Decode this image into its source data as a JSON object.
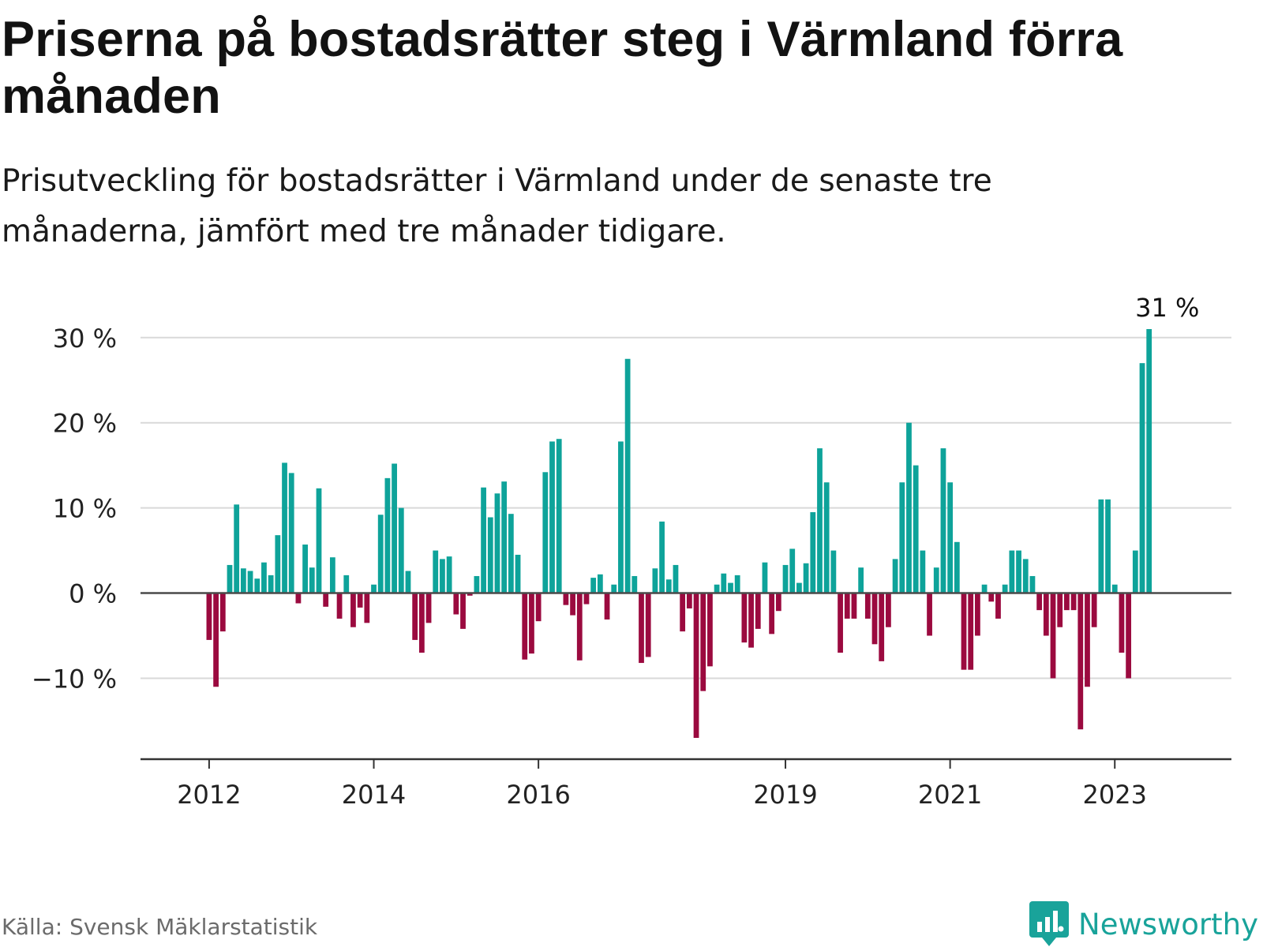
{
  "header": {
    "title": "Priserna på bostadsrätter steg i Värmland förra månaden",
    "subtitle": "Prisutveckling för bostadsrätter i Värmland under de senaste tre månaderna, jämfört med tre månader tidigare."
  },
  "footer": {
    "source": "Källa: Svensk Mäklarstatistik",
    "brand": "Newsworthy",
    "brand_icon": "bar-chart-speech-bubble-icon"
  },
  "colors": {
    "positive": "#0ea39a",
    "negative": "#9b0a3f",
    "grid": "#d9d9d9",
    "axis": "#333333",
    "brand": "#19a39a"
  },
  "chart_data": {
    "type": "bar",
    "unit": "%",
    "x_start": "2012-01",
    "frequency": "monthly",
    "xlim": [
      "2011-03",
      "2024-06"
    ],
    "ylim": [
      -19.5,
      33.5
    ],
    "yticks": [
      30,
      20,
      10,
      0,
      -10
    ],
    "ytick_labels": [
      "30 %",
      "20 %",
      "10 %",
      "0 %",
      "−10 %"
    ],
    "xticks": [
      "2012-01",
      "2014-01",
      "2016-01",
      "2019-01",
      "2021-01",
      "2023-01"
    ],
    "xtick_labels": [
      "2012",
      "2014",
      "2016",
      "2019",
      "2021",
      "2023"
    ],
    "grid": true,
    "annotation": {
      "x": "2023-09",
      "text": "31 %"
    },
    "values": [
      -5.5,
      -11,
      -4.5,
      3.3,
      10.4,
      2.9,
      2.6,
      1.7,
      3.6,
      2.1,
      6.8,
      15.3,
      14.1,
      -1.2,
      5.7,
      3.0,
      12.3,
      -1.6,
      4.2,
      -3.0,
      2.1,
      -4.0,
      -1.7,
      -3.5,
      1.0,
      9.2,
      13.5,
      15.2,
      10.0,
      2.6,
      -5.5,
      -7.0,
      -3.5,
      5.0,
      4.0,
      4.3,
      -2.5,
      -4.2,
      -0.3,
      2.0,
      12.4,
      8.9,
      11.7,
      13.1,
      9.3,
      4.5,
      -7.8,
      -7.1,
      -3.3,
      14.2,
      17.8,
      18.1,
      -1.4,
      -2.6,
      -7.9,
      -1.3,
      1.8,
      2.2,
      -3.1,
      1.0,
      17.8,
      27.5,
      2.0,
      -8.2,
      -7.5,
      2.9,
      8.4,
      1.6,
      3.3,
      -4.5,
      -1.8,
      -17,
      -11.5,
      -8.6,
      1.0,
      2.3,
      1.2,
      2.1,
      -5.8,
      -6.4,
      -4.2,
      3.6,
      -4.8,
      -2.1,
      3.3,
      5.2,
      1.2,
      3.5,
      9.5,
      17.0,
      13.0,
      5.0,
      -7.0,
      -3.0,
      -3.0,
      3.0,
      -3.0,
      -6.0,
      -8.0,
      -4.0,
      4.0,
      13.0,
      20.0,
      15.0,
      5.0,
      -5.0,
      3.0,
      17.0,
      13.0,
      6.0,
      -9.0,
      -9.0,
      -5.0,
      1.0,
      -1.0,
      -3.0,
      1.0,
      5.0,
      5.0,
      4.0,
      2.0,
      -2.0,
      -5.0,
      -10.0,
      -4.0,
      -2.0,
      -2.0,
      -16.0,
      -11.0,
      -4.0,
      11.0,
      11.0,
      1.0,
      -7.0,
      -10.0,
      5.0,
      27.0,
      31.0
    ]
  }
}
